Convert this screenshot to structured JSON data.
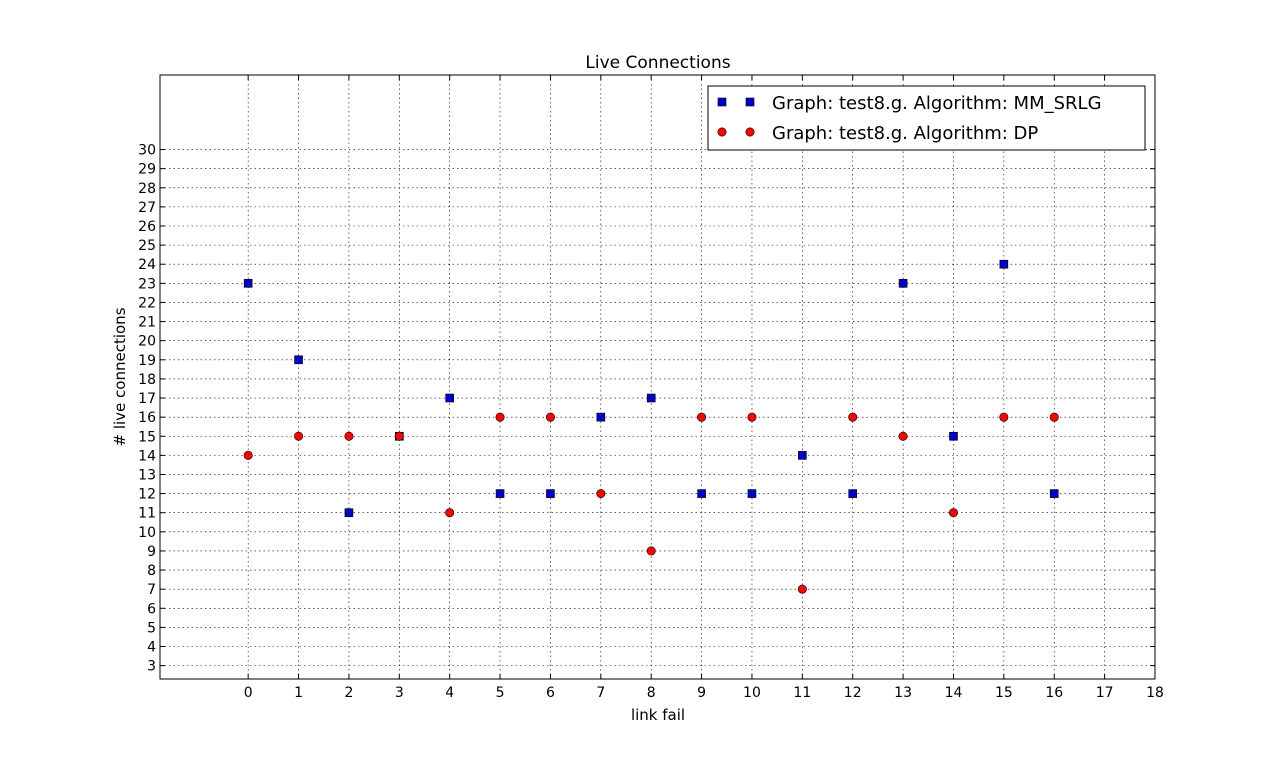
{
  "chart_data": {
    "type": "scatter",
    "title": "Live Connections",
    "xlabel": "link fail",
    "ylabel": "# live connections",
    "xlim": [
      -1.75,
      18
    ],
    "ylim": [
      2.3,
      33.9
    ],
    "xticks": [
      0,
      1,
      2,
      3,
      4,
      5,
      6,
      7,
      8,
      9,
      10,
      11,
      12,
      13,
      14,
      15,
      16,
      17,
      18
    ],
    "yticks": [
      3,
      4,
      5,
      6,
      7,
      8,
      9,
      10,
      11,
      12,
      13,
      14,
      15,
      16,
      17,
      18,
      19,
      20,
      21,
      22,
      23,
      24,
      25,
      26,
      27,
      28,
      29,
      30
    ],
    "grid": true,
    "legend_position": "top-right",
    "x": [
      0,
      1,
      2,
      3,
      4,
      5,
      6,
      7,
      8,
      9,
      10,
      11,
      12,
      13,
      14,
      15,
      16
    ],
    "series": [
      {
        "name": "Graph: test8.g. Algorithm: MM_SRLG",
        "marker": "square",
        "color": "#0000cc",
        "values": [
          23,
          19,
          11,
          15,
          17,
          12,
          12,
          16,
          17,
          12,
          12,
          14,
          12,
          23,
          15,
          24,
          12
        ]
      },
      {
        "name": "Graph: test8.g. Algorithm: DP",
        "marker": "circle",
        "color": "#ff0000",
        "values": [
          14,
          15,
          15,
          15,
          11,
          16,
          16,
          12,
          9,
          16,
          16,
          7,
          16,
          15,
          11,
          16,
          16
        ]
      }
    ]
  }
}
